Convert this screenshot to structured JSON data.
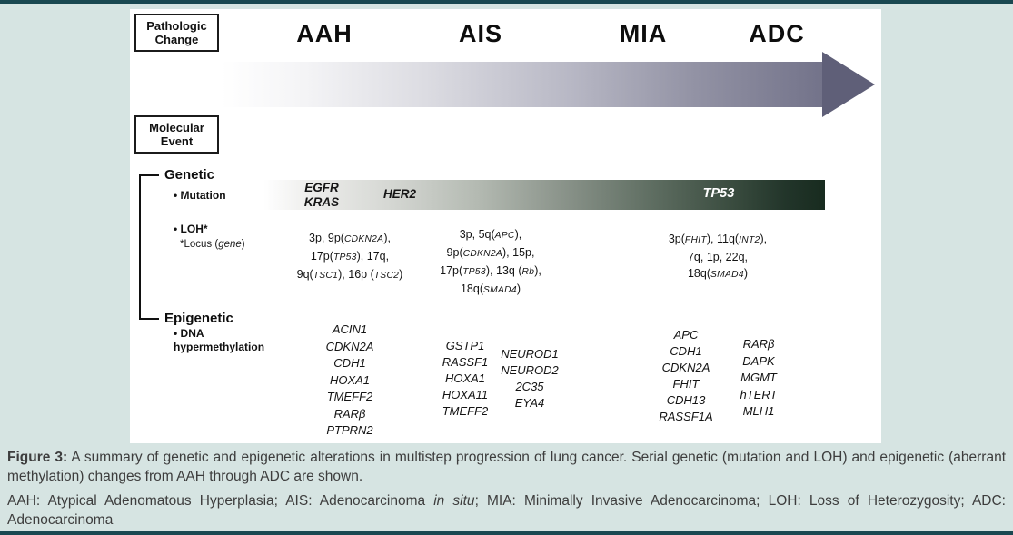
{
  "figure": {
    "pathologic_box": {
      "line1": "Pathologic",
      "line2": "Change"
    },
    "molecular_box": {
      "line1": "Molecular",
      "line2": "Event"
    },
    "stages": [
      "AAH",
      "AIS",
      "MIA",
      "ADC"
    ],
    "genetic": {
      "heading": "Genetic",
      "mutation_label": "Mutation",
      "mutation_genes": {
        "early_1": "EGFR",
        "early_2": "KRAS",
        "mid": "HER2",
        "late": "TP53"
      },
      "loh_label": "LOH*",
      "loh_footnote": "*Locus (~gene~)",
      "loh_columns": [
        {
          "lines": [
            "3p, 9p(~CDKN2A~),",
            "17p(~TP53~), 17q,",
            "9q(~TSC1~), 16p (~TSC2~)"
          ]
        },
        {
          "lines": [
            "3p, 5q(~APC~),",
            "9p(~CDKN2A~), 15p,",
            "17p(~TP53~), 13q (~Rb~),",
            "18q(~SMAD4~)"
          ]
        },
        {
          "lines": [
            "3p(~FHIT~), 11q(~INT2~),",
            "7q, 1p, 22q,",
            "18q(~SMAD4~)"
          ]
        }
      ]
    },
    "epigenetic": {
      "heading": "Epigenetic",
      "dna_label": {
        "line1": "DNA",
        "line2": "hypermethylation"
      },
      "gene_columns": [
        {
          "genes": [
            "ACIN1",
            "CDKN2A",
            "CDH1",
            "HOXA1",
            "TMEFF2",
            "RARβ",
            "PTPRN2"
          ]
        },
        {
          "genes": [
            "GSTP1",
            "RASSF1",
            "HOXA1",
            "HOXA11",
            "TMEFF2"
          ]
        },
        {
          "genes": [
            "NEUROD1",
            "NEUROD2",
            "2C35",
            "EYA4"
          ]
        },
        {
          "genes": [
            "APC",
            "CDH1",
            "CDKN2A",
            "FHIT",
            "CDH13",
            "RASSF1A"
          ]
        },
        {
          "genes": [
            "RARβ",
            "DAPK",
            "MGMT",
            "hTERT",
            "MLH1"
          ]
        }
      ]
    }
  },
  "caption": {
    "label": "Figure 3:",
    "body": "A summary of genetic and epigenetic alterations in multistep progression of lung cancer. Serial genetic (mutation and LOH) and epigenetic (aberrant methylation) changes from AAH through ADC are shown.",
    "abbreviations": "AAH: Atypical Adenomatous Hyperplasia; AIS: Adenocarcinoma ~in situ~; MIA: Minimally Invasive Adenocarcinoma; LOH: Loss of Heterozygosity; ADC: Adenocarcinoma"
  },
  "colors": {
    "page_background": "#d6e4e2",
    "rule": "#1a4851",
    "panel_background": "#ffffff",
    "arrow_gradient_start": "#ffffff",
    "arrow_gradient_end": "#73738a",
    "arrow_head": "#5f5f78",
    "mutation_bar_gradient_start": "#ffffff",
    "mutation_bar_gradient_end": "#182b1f",
    "caption_text": "#3d3d3d"
  }
}
